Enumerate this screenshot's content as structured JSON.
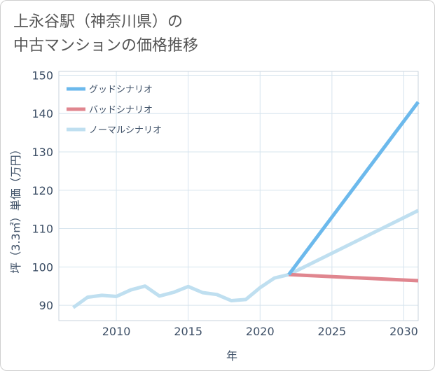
{
  "chart_data": {
    "type": "line",
    "title": [
      "上永谷駅（神奈川県）の",
      "中古マンションの価格推移"
    ],
    "xlabel": "年",
    "ylabel": "坪（3.3㎡）単価（万円）",
    "xlim": [
      2006,
      2031
    ],
    "ylim": [
      86,
      151
    ],
    "xticks": [
      2010,
      2015,
      2020,
      2025,
      2030
    ],
    "yticks": [
      90,
      100,
      110,
      120,
      130,
      140,
      150
    ],
    "grid": true,
    "legend_position": "top-left",
    "series": [
      {
        "name": "グッドシナリオ",
        "color": "#6cb9ec",
        "x": [
          2022,
          2031
        ],
        "y": [
          98.0,
          143.0
        ]
      },
      {
        "name": "バッドシナリオ",
        "color": "#e0868f",
        "x": [
          2022,
          2031
        ],
        "y": [
          98.0,
          96.4
        ]
      },
      {
        "name": "ノーマルシナリオ",
        "color": "#bfdff0",
        "x": [
          2007,
          2008,
          2009,
          2010,
          2011,
          2012,
          2013,
          2014,
          2015,
          2016,
          2017,
          2018,
          2019,
          2020,
          2021,
          2022,
          2031
        ],
        "y": [
          89.4,
          92.1,
          92.6,
          92.3,
          94.0,
          95.0,
          92.4,
          93.4,
          94.9,
          93.3,
          92.8,
          91.2,
          91.5,
          94.6,
          97.1,
          98.0,
          114.7
        ]
      }
    ]
  }
}
